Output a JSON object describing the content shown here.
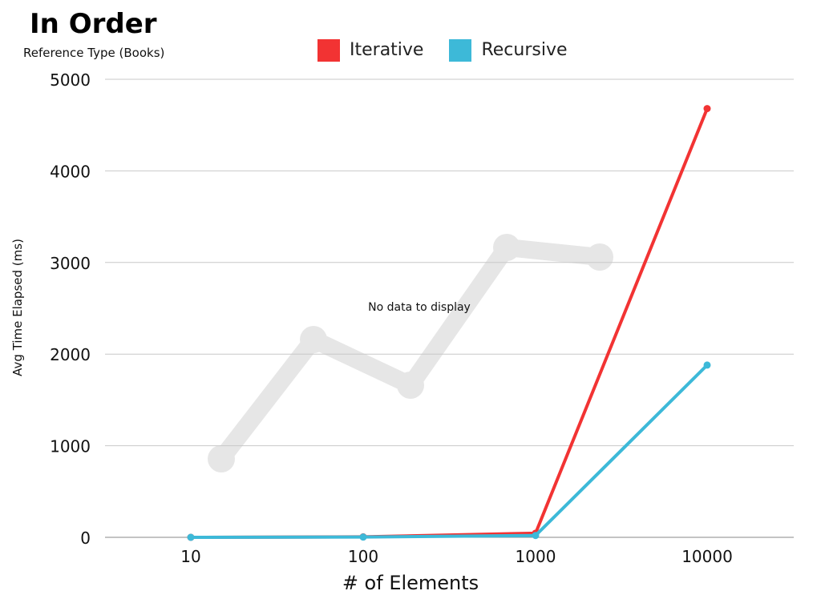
{
  "chart_data": {
    "type": "line",
    "title": "In Order",
    "subtitle": "Reference Type (Books)",
    "xlabel": "# of Elements",
    "ylabel": "Avg Time Elapsed (ms)",
    "categories": [
      "10",
      "100",
      "1000",
      "10000"
    ],
    "ylim": [
      0,
      5000
    ],
    "yticks": [
      0,
      1000,
      2000,
      3000,
      4000,
      5000
    ],
    "grid": true,
    "legend_position": "top",
    "series": [
      {
        "name": "Iterative",
        "color": "#f23333",
        "values": [
          0,
          5,
          45,
          4680
        ]
      },
      {
        "name": "Recursive",
        "color": "#3db9d8",
        "values": [
          0,
          3,
          20,
          1880
        ]
      }
    ],
    "placeholder_text": "No data to display"
  }
}
